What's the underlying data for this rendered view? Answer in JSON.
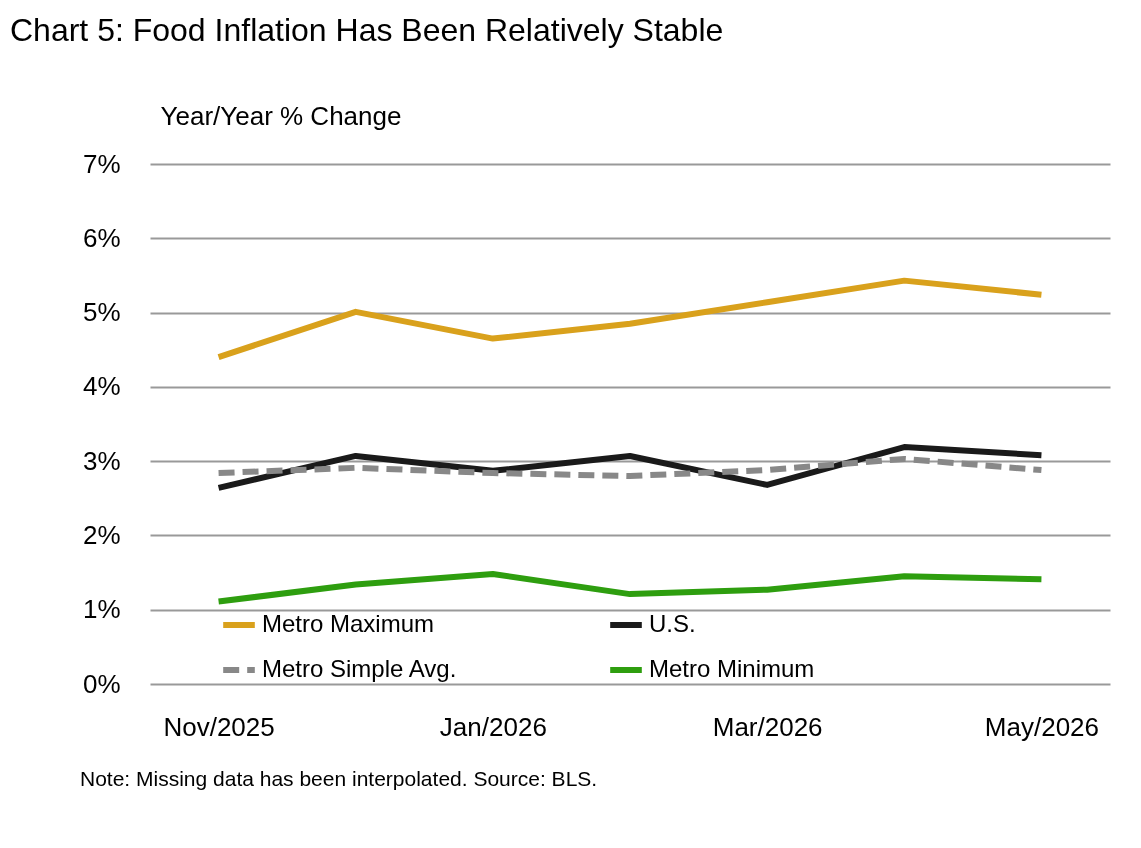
{
  "chart_data": {
    "type": "line",
    "title": "Chart 5: Food Inflation Has Been Relatively Stable",
    "ylabel": "Year/Year % Change",
    "categories": [
      "Nov/2025",
      null,
      "Jan/2026",
      null,
      "Mar/2026",
      null,
      "May/2026"
    ],
    "series": [
      {
        "name": "Metro Maximum",
        "color": "#d9a11c",
        "line_style": "solid",
        "values": [
          4.4,
          5.01,
          4.65,
          4.85,
          5.14,
          5.43,
          5.24
        ]
      },
      {
        "name": "U.S.",
        "color": "#1a1a1a",
        "line_style": "solid",
        "values": [
          2.64,
          3.07,
          2.87,
          3.07,
          2.68,
          3.19,
          3.08
        ]
      },
      {
        "name": "Metro Simple Avg.",
        "color": "#888888",
        "line_style": "dashed",
        "values": [
          2.84,
          2.91,
          2.84,
          2.8,
          2.88,
          3.03,
          2.88
        ]
      },
      {
        "name": "Metro Minimum",
        "color": "#2e9e0f",
        "line_style": "solid",
        "values": [
          1.11,
          1.34,
          1.48,
          1.21,
          1.27,
          1.45,
          1.41
        ]
      }
    ],
    "ylim": [
      0,
      7
    ],
    "yticks": [
      {
        "value": 0,
        "label": "0%"
      },
      {
        "value": 1,
        "label": "1%"
      },
      {
        "value": 2,
        "label": "2%"
      },
      {
        "value": 3,
        "label": "3%"
      },
      {
        "value": 4,
        "label": "4%"
      },
      {
        "value": 5,
        "label": "5%"
      },
      {
        "value": 6,
        "label": "6%"
      },
      {
        "value": 7,
        "label": "7%"
      }
    ],
    "grid": "y",
    "legend": "bottom",
    "marker": "none",
    "annotations": [
      "Note: Missing data has been interpolated. Source: BLS."
    ]
  }
}
